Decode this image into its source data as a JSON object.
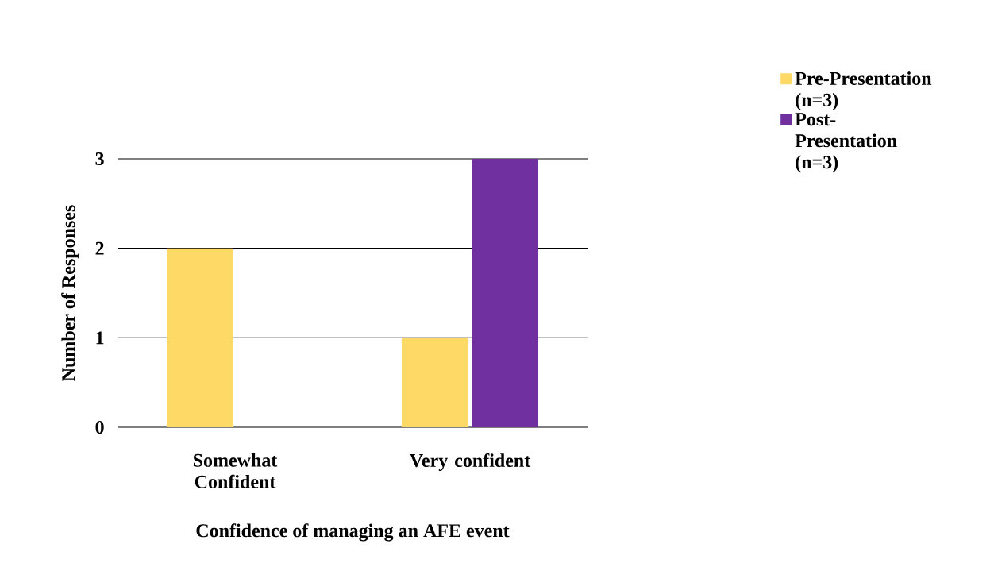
{
  "chart_data": {
    "type": "bar",
    "xlabel": "Confidence of managing an AFE event",
    "ylabel": "Number of Responses",
    "categories": [
      "Somewhat Confident",
      "Very confident"
    ],
    "series": [
      {
        "name": "Pre-Presentation (n=3)",
        "color": "#ffd966",
        "values": [
          2,
          1
        ]
      },
      {
        "name": "Post-Presentation (n=3)",
        "color": "#7030a0",
        "values": [
          0,
          3
        ]
      }
    ],
    "ylim": [
      0,
      3
    ],
    "yticks": [
      0,
      1,
      2,
      3
    ],
    "grid": "y",
    "legend": "top right"
  }
}
